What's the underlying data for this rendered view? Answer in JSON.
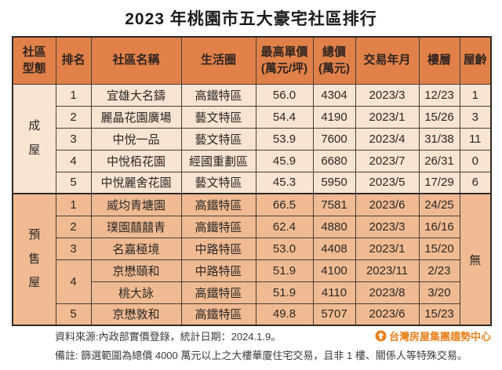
{
  "title": "2023 年桃園市五大豪宅社區排行",
  "colors": {
    "header_bg": "#e18149",
    "built_row_bg": "#f8e4d2",
    "presale_row_bg": "#f0bb93",
    "border": "#453f38",
    "brand_orange": "#e8821e",
    "title_text": "#1b1b1b"
  },
  "chart_data": {
    "type": "table",
    "title": "2023 年桃園市五大豪宅社區排行",
    "columns": [
      {
        "key": "type",
        "lines": [
          "社區",
          "型態"
        ]
      },
      {
        "key": "rank",
        "lines": [
          "排名"
        ]
      },
      {
        "key": "name",
        "lines": [
          "社區名稱"
        ]
      },
      {
        "key": "district",
        "lines": [
          "生活圈"
        ]
      },
      {
        "key": "unit_price",
        "lines": [
          "最高單價",
          "(萬元/坪)"
        ]
      },
      {
        "key": "total_price",
        "lines": [
          "總價",
          "(萬元)"
        ]
      },
      {
        "key": "date",
        "lines": [
          "交易年月"
        ]
      },
      {
        "key": "floor",
        "lines": [
          "樓層"
        ]
      },
      {
        "key": "age",
        "lines": [
          "屋齡"
        ]
      }
    ],
    "sections": [
      {
        "type_label": "成屋",
        "rows": [
          {
            "rank": "1",
            "name": "宜雄大名鑄",
            "district": "高鐵特區",
            "unit_price": "56.0",
            "total_price": "4304",
            "date": "2023/3",
            "floor": "12/23",
            "age": "1"
          },
          {
            "rank": "2",
            "name": "麗晶花園廣場",
            "district": "藝文特區",
            "unit_price": "54.4",
            "total_price": "4190",
            "date": "2023/1",
            "floor": "15/26",
            "age": "3"
          },
          {
            "rank": "3",
            "name": "中悅一品",
            "district": "藝文特區",
            "unit_price": "53.9",
            "total_price": "7600",
            "date": "2023/4",
            "floor": "31/38",
            "age": "11"
          },
          {
            "rank": "4",
            "name": "中悅栢花園",
            "district": "經國重劃區",
            "unit_price": "45.9",
            "total_price": "6680",
            "date": "2023/7",
            "floor": "26/31",
            "age": "0"
          },
          {
            "rank": "5",
            "name": "中悅麗舍花園",
            "district": "藝文特區",
            "unit_price": "45.3",
            "total_price": "5950",
            "date": "2023/5",
            "floor": "17/29",
            "age": "6"
          }
        ]
      },
      {
        "type_label": "預售屋",
        "age_merged": "無",
        "rows": [
          {
            "rank": "1",
            "name": "威均青塘園",
            "district": "高鐵特區",
            "unit_price": "66.5",
            "total_price": "7581",
            "date": "2023/6",
            "floor": "24/25"
          },
          {
            "rank": "2",
            "name": "璞園囍囍青",
            "district": "高鐵特區",
            "unit_price": "62.4",
            "total_price": "4880",
            "date": "2023/3",
            "floor": "16/16"
          },
          {
            "rank": "3",
            "name": "名嘉極境",
            "district": "中路特區",
            "unit_price": "53.0",
            "total_price": "4408",
            "date": "2023/1",
            "floor": "15/20"
          },
          {
            "rank": "4",
            "rank_span": 2,
            "name": "京懋頤和",
            "district": "中路特區",
            "unit_price": "51.9",
            "total_price": "4100",
            "date": "2023/11",
            "floor": "2/23"
          },
          {
            "rank": null,
            "name": "桃大詠",
            "district": "高鐵特區",
            "unit_price": "51.9",
            "total_price": "4110",
            "date": "2023/8",
            "floor": "3/20"
          },
          {
            "rank": "5",
            "name": "京懋敦和",
            "district": "高鐵特區",
            "unit_price": "49.8",
            "total_price": "5707",
            "date": "2023/6",
            "floor": "15/23"
          }
        ]
      }
    ]
  },
  "footer": {
    "source": "資料來源:內政部實價登錄，統計日期：2024.1.9。",
    "note": "備註: 篩選範圍為總價 4000 萬元以上之大樓華廈住宅交易，且非 1 樓、關係人等特殊交易。",
    "brand": "台灣房屋集團趨勢中心",
    "brand_icon": "house-circle-icon"
  }
}
